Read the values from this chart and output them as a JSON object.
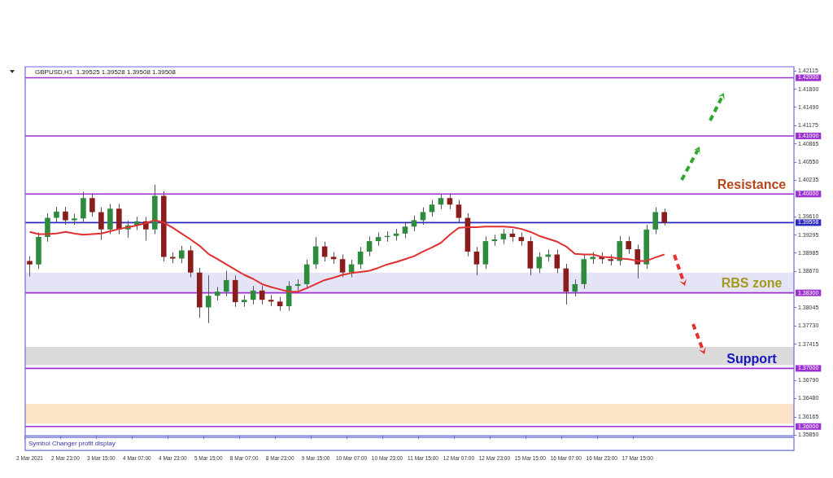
{
  "chart_data": {
    "type": "candlestick",
    "title": "GBPUSD,H1  1.39525 1.39528 1.39508 1.39508",
    "categories": [
      "2 Mar 2021",
      null,
      null,
      null,
      "2 Mar 23:00",
      null,
      null,
      null,
      "3 Mar 15:00",
      null,
      null,
      null,
      "4 Mar 07:00",
      null,
      null,
      null,
      "4 Mar 23:00",
      null,
      null,
      null,
      "5 Mar 15:00",
      null,
      null,
      null,
      "8 Mar 07:00",
      null,
      null,
      null,
      "8 Mar 23:00",
      null,
      null,
      null,
      "9 Mar 15:00",
      null,
      null,
      null,
      "10 Mar 07:00",
      null,
      null,
      null,
      "10 Mar 23:00",
      null,
      null,
      null,
      "11 Mar 15:00",
      null,
      null,
      null,
      "12 Mar 07:00",
      null,
      null,
      null,
      "12 Mar 23:00",
      null,
      null,
      null,
      "15 Mar 15:00",
      null,
      null,
      null,
      "16 Mar 07:00",
      null,
      null,
      null,
      "16 Mar 23:00",
      null,
      null,
      null,
      "17 Mar 15:00",
      null,
      null,
      null,
      null,
      null,
      null,
      null,
      null,
      null,
      null,
      null,
      null,
      null,
      null,
      null,
      null,
      null
    ],
    "ohlc": [
      [
        1.3885,
        1.3893,
        1.3858,
        1.3879
      ],
      [
        1.3879,
        1.3934,
        1.3871,
        1.3926
      ],
      [
        1.3926,
        1.3967,
        1.3918,
        1.3959
      ],
      [
        1.3959,
        1.3978,
        1.3951,
        1.397
      ],
      [
        1.397,
        1.3978,
        1.3947,
        1.3955
      ],
      [
        1.3955,
        1.3966,
        1.3947,
        1.3958
      ],
      [
        1.3958,
        1.4004,
        1.395,
        1.3993
      ],
      [
        1.3993,
        1.4001,
        1.3961,
        1.3969
      ],
      [
        1.3969,
        1.3977,
        1.3921,
        1.3939
      ],
      [
        1.3939,
        1.3983,
        1.3931,
        1.3975
      ],
      [
        1.3975,
        1.3983,
        1.3931,
        1.3939
      ],
      [
        1.3939,
        1.3954,
        1.3925,
        1.3946
      ],
      [
        1.3946,
        1.3961,
        1.3938,
        1.3953
      ],
      [
        1.3953,
        1.3961,
        1.392,
        1.3939
      ],
      [
        1.3939,
        1.4016,
        1.3931,
        1.3997
      ],
      [
        1.3997,
        1.4005,
        1.3884,
        1.3892
      ],
      [
        1.3892,
        1.39,
        1.3881,
        1.3889
      ],
      [
        1.3889,
        1.3911,
        1.3881,
        1.3903
      ],
      [
        1.3903,
        1.3911,
        1.3857,
        1.3865
      ],
      [
        1.3865,
        1.3873,
        1.3787,
        1.3805
      ],
      [
        1.3805,
        1.386,
        1.3778,
        1.3825
      ],
      [
        1.3825,
        1.384,
        1.3817,
        1.3832
      ],
      [
        1.3832,
        1.3868,
        1.3824,
        1.3852
      ],
      [
        1.3852,
        1.386,
        1.3806,
        1.3814
      ],
      [
        1.3814,
        1.3826,
        1.3806,
        1.3818
      ],
      [
        1.3818,
        1.3842,
        1.381,
        1.3834
      ],
      [
        1.3834,
        1.3842,
        1.381,
        1.3818
      ],
      [
        1.3818,
        1.3826,
        1.3807,
        1.3815
      ],
      [
        1.3815,
        1.3823,
        1.3799,
        1.3807
      ],
      [
        1.3807,
        1.385,
        1.3799,
        1.3842
      ],
      [
        1.3842,
        1.3853,
        1.3834,
        1.3845
      ],
      [
        1.3845,
        1.3887,
        1.3837,
        1.3879
      ],
      [
        1.3879,
        1.3926,
        1.3871,
        1.391
      ],
      [
        1.391,
        1.3918,
        1.3884,
        1.3892
      ],
      [
        1.3892,
        1.39,
        1.388,
        1.3888
      ],
      [
        1.3888,
        1.3896,
        1.3857,
        1.3865
      ],
      [
        1.3865,
        1.3887,
        1.3857,
        1.3879
      ],
      [
        1.3879,
        1.3909,
        1.3871,
        1.3901
      ],
      [
        1.3901,
        1.3927,
        1.3893,
        1.3919
      ],
      [
        1.3919,
        1.3934,
        1.3911,
        1.3926
      ],
      [
        1.3926,
        1.3936,
        1.3918,
        1.3928
      ],
      [
        1.3928,
        1.394,
        1.392,
        1.3932
      ],
      [
        1.3932,
        1.3952,
        1.3924,
        1.3944
      ],
      [
        1.3944,
        1.3963,
        1.3936,
        1.3955
      ],
      [
        1.3955,
        1.3977,
        1.3947,
        1.3969
      ],
      [
        1.3969,
        1.399,
        1.3961,
        1.3982
      ],
      [
        1.3982,
        1.3999,
        1.3974,
        1.3993
      ],
      [
        1.3993,
        1.4001,
        1.3974,
        1.3982
      ],
      [
        1.3982,
        1.399,
        1.3951,
        1.3959
      ],
      [
        1.3959,
        1.3967,
        1.3893,
        1.3901
      ],
      [
        1.3901,
        1.3909,
        1.386,
        1.3879
      ],
      [
        1.3879,
        1.3927,
        1.3871,
        1.3919
      ],
      [
        1.3919,
        1.393,
        1.3911,
        1.3922
      ],
      [
        1.3922,
        1.394,
        1.3914,
        1.3932
      ],
      [
        1.3932,
        1.394,
        1.3918,
        1.3926
      ],
      [
        1.3926,
        1.3934,
        1.3911,
        1.3919
      ],
      [
        1.3919,
        1.3927,
        1.386,
        1.3872
      ],
      [
        1.3872,
        1.39,
        1.3864,
        1.3892
      ],
      [
        1.3892,
        1.3904,
        1.3884,
        1.3896
      ],
      [
        1.3896,
        1.3904,
        1.3864,
        1.3872
      ],
      [
        1.3872,
        1.388,
        1.381,
        1.3832
      ],
      [
        1.3832,
        1.3853,
        1.3824,
        1.3845
      ],
      [
        1.3845,
        1.3896,
        1.3837,
        1.3888
      ],
      [
        1.3888,
        1.39,
        1.388,
        1.3892
      ],
      [
        1.3892,
        1.39,
        1.388,
        1.3888
      ],
      [
        1.3888,
        1.3896,
        1.3877,
        1.3885
      ],
      [
        1.3885,
        1.3928,
        1.3877,
        1.3919
      ],
      [
        1.3919,
        1.3927,
        1.3897,
        1.3905
      ],
      [
        1.3905,
        1.3913,
        1.3855,
        1.3879
      ],
      [
        1.3879,
        1.3947,
        1.3871,
        1.3939
      ],
      [
        1.3939,
        1.3977,
        1.3931,
        1.3969
      ],
      [
        1.3969,
        1.3975,
        1.3946,
        1.39508
      ],
      null,
      null,
      null,
      null,
      null,
      null,
      null,
      null,
      null,
      null,
      null,
      null,
      null,
      null
    ],
    "colors": [
      "#8b1c1c",
      "#2e8b3e",
      "#2e8b3e",
      "#2e8b3e",
      "#8b1c1c",
      "#2e8b3e",
      "#2e8b3e",
      "#8b1c1c",
      "#8b1c1c",
      "#2e8b3e",
      "#8b1c1c",
      "#2e8b3e",
      "#2e8b3e",
      "#8b1c1c",
      "#2e8b3e",
      "#8b1c1c",
      "#8b1c1c",
      "#2e8b3e",
      "#8b1c1c",
      "#8b1c1c",
      "#2e8b3e",
      "#2e8b3e",
      "#2e8b3e",
      "#8b1c1c",
      "#2e8b3e",
      "#2e8b3e",
      "#8b1c1c",
      "#8b1c1c",
      "#8b1c1c",
      "#2e8b3e",
      "#2e8b3e",
      "#2e8b3e",
      "#2e8b3e",
      "#8b1c1c",
      "#8b1c1c",
      "#8b1c1c",
      "#2e8b3e",
      "#2e8b3e",
      "#2e8b3e",
      "#2e8b3e",
      "#2e8b3e",
      "#2e8b3e",
      "#2e8b3e",
      "#2e8b3e",
      "#2e8b3e",
      "#2e8b3e",
      "#2e8b3e",
      "#8b1c1c",
      "#8b1c1c",
      "#8b1c1c",
      "#8b1c1c",
      "#2e8b3e",
      "#2e8b3e",
      "#2e8b3e",
      "#8b1c1c",
      "#8b1c1c",
      "#8b1c1c",
      "#2e8b3e",
      "#2e8b3e",
      "#8b1c1c",
      "#8b1c1c",
      "#2e8b3e",
      "#2e8b3e",
      "#2e8b3e",
      "#8b1c1c",
      "#8b1c1c",
      "#2e8b3e",
      "#8b1c1c",
      "#8b1c1c",
      "#2e8b3e",
      "#2e8b3e",
      "#8b1c1c",
      null,
      null,
      null,
      null,
      null,
      null,
      null,
      null,
      null,
      null,
      null,
      null,
      null,
      null
    ],
    "series": [
      {
        "type": "line",
        "color": "#e03030",
        "values": [
          1.3935,
          1.3931,
          1.3931,
          1.3932,
          1.3935,
          1.3932,
          1.393,
          1.3931,
          1.3932,
          1.3936,
          1.394,
          1.3943,
          1.3946,
          1.395,
          1.3955,
          1.3951,
          1.3942,
          1.3932,
          1.3922,
          1.3911,
          1.3897,
          1.3888,
          1.3879,
          1.387,
          1.3861,
          1.3854,
          1.3845,
          1.384,
          1.3836,
          1.3832,
          1.3832,
          1.3838,
          1.3845,
          1.3852,
          1.3856,
          1.3861,
          1.3864,
          1.3866,
          1.3868,
          1.3873,
          1.3879,
          1.3883,
          1.3888,
          1.3893,
          1.3901,
          1.3908,
          1.3916,
          1.393,
          1.3942,
          1.3943,
          1.3943,
          1.3944,
          1.3944,
          1.3944,
          1.3943,
          1.394,
          1.3935,
          1.3928,
          1.3923,
          1.3918,
          1.391,
          1.3897,
          1.3896,
          1.3896,
          1.3892,
          1.3891,
          1.3889,
          1.3888,
          1.3885,
          1.3885,
          1.3891,
          1.3896,
          null,
          null,
          null,
          null,
          null,
          null,
          null,
          null,
          null,
          null,
          null,
          null,
          null,
          null
        ]
      }
    ],
    "ylim": [
      1.3584,
      1.4219
    ],
    "yticks": [
      {
        "value": 1.42115,
        "label": "1.42115"
      },
      {
        "value": 1.418,
        "label": "1.41800"
      },
      {
        "value": 1.4149,
        "label": "1.41490"
      },
      {
        "value": 1.41175,
        "label": "1.41175"
      },
      {
        "value": 1.40865,
        "label": "1.40865"
      },
      {
        "value": 1.4055,
        "label": "1.40550"
      },
      {
        "value": 1.40235,
        "label": "1.40235"
      },
      {
        "value": 1.3961,
        "label": "1.39610"
      },
      {
        "value": 1.39295,
        "label": "1.39295"
      },
      {
        "value": 1.38985,
        "label": "1.38985"
      },
      {
        "value": 1.3867,
        "label": "1.38670"
      },
      {
        "value": 1.38045,
        "label": "1.38045"
      },
      {
        "value": 1.3773,
        "label": "1.37730"
      },
      {
        "value": 1.37415,
        "label": "1.37415"
      },
      {
        "value": 1.3679,
        "label": "1.36790"
      },
      {
        "value": 1.3648,
        "label": "1.36480"
      },
      {
        "value": 1.36165,
        "label": "1.36165"
      },
      {
        "value": 1.3585,
        "label": "1.35850"
      }
    ],
    "ref_lines": [
      {
        "axis": "y",
        "value": 1.42,
        "label": "1.42000",
        "color": "#9b30d0"
      },
      {
        "axis": "y",
        "value": 1.41,
        "label": "1.41000",
        "color": "#9b30d0"
      },
      {
        "axis": "y",
        "value": 1.4,
        "label": "1.40000",
        "color": "#9b30d0"
      },
      {
        "axis": "y",
        "value": 1.39508,
        "label": "1.39508",
        "color": "#2a2ac0"
      },
      {
        "axis": "y",
        "value": 1.383,
        "label": "1.38300",
        "color": "#9b30d0"
      },
      {
        "axis": "y",
        "value": 1.37,
        "label": "1.37000",
        "color": "#9b30d0"
      },
      {
        "axis": "y",
        "value": 1.36,
        "label": "1.36000",
        "color": "#9b30d0"
      }
    ],
    "bands": [
      {
        "axis": "y",
        "from": 1.383,
        "to": 1.3865,
        "color": "#e4e4f6"
      },
      {
        "axis": "y",
        "from": 1.3706,
        "to": 1.3737,
        "color": "#dadada"
      },
      {
        "axis": "y",
        "from": 1.3605,
        "to": 1.3639,
        "color": "#fde4c8"
      }
    ],
    "annotations": [
      {
        "text": "Resistance",
        "y": 1.4
      },
      {
        "text": "RBS zone",
        "y": 1.383
      },
      {
        "text": "Support",
        "y": 1.37
      },
      "Symbol Changer profit display"
    ]
  }
}
